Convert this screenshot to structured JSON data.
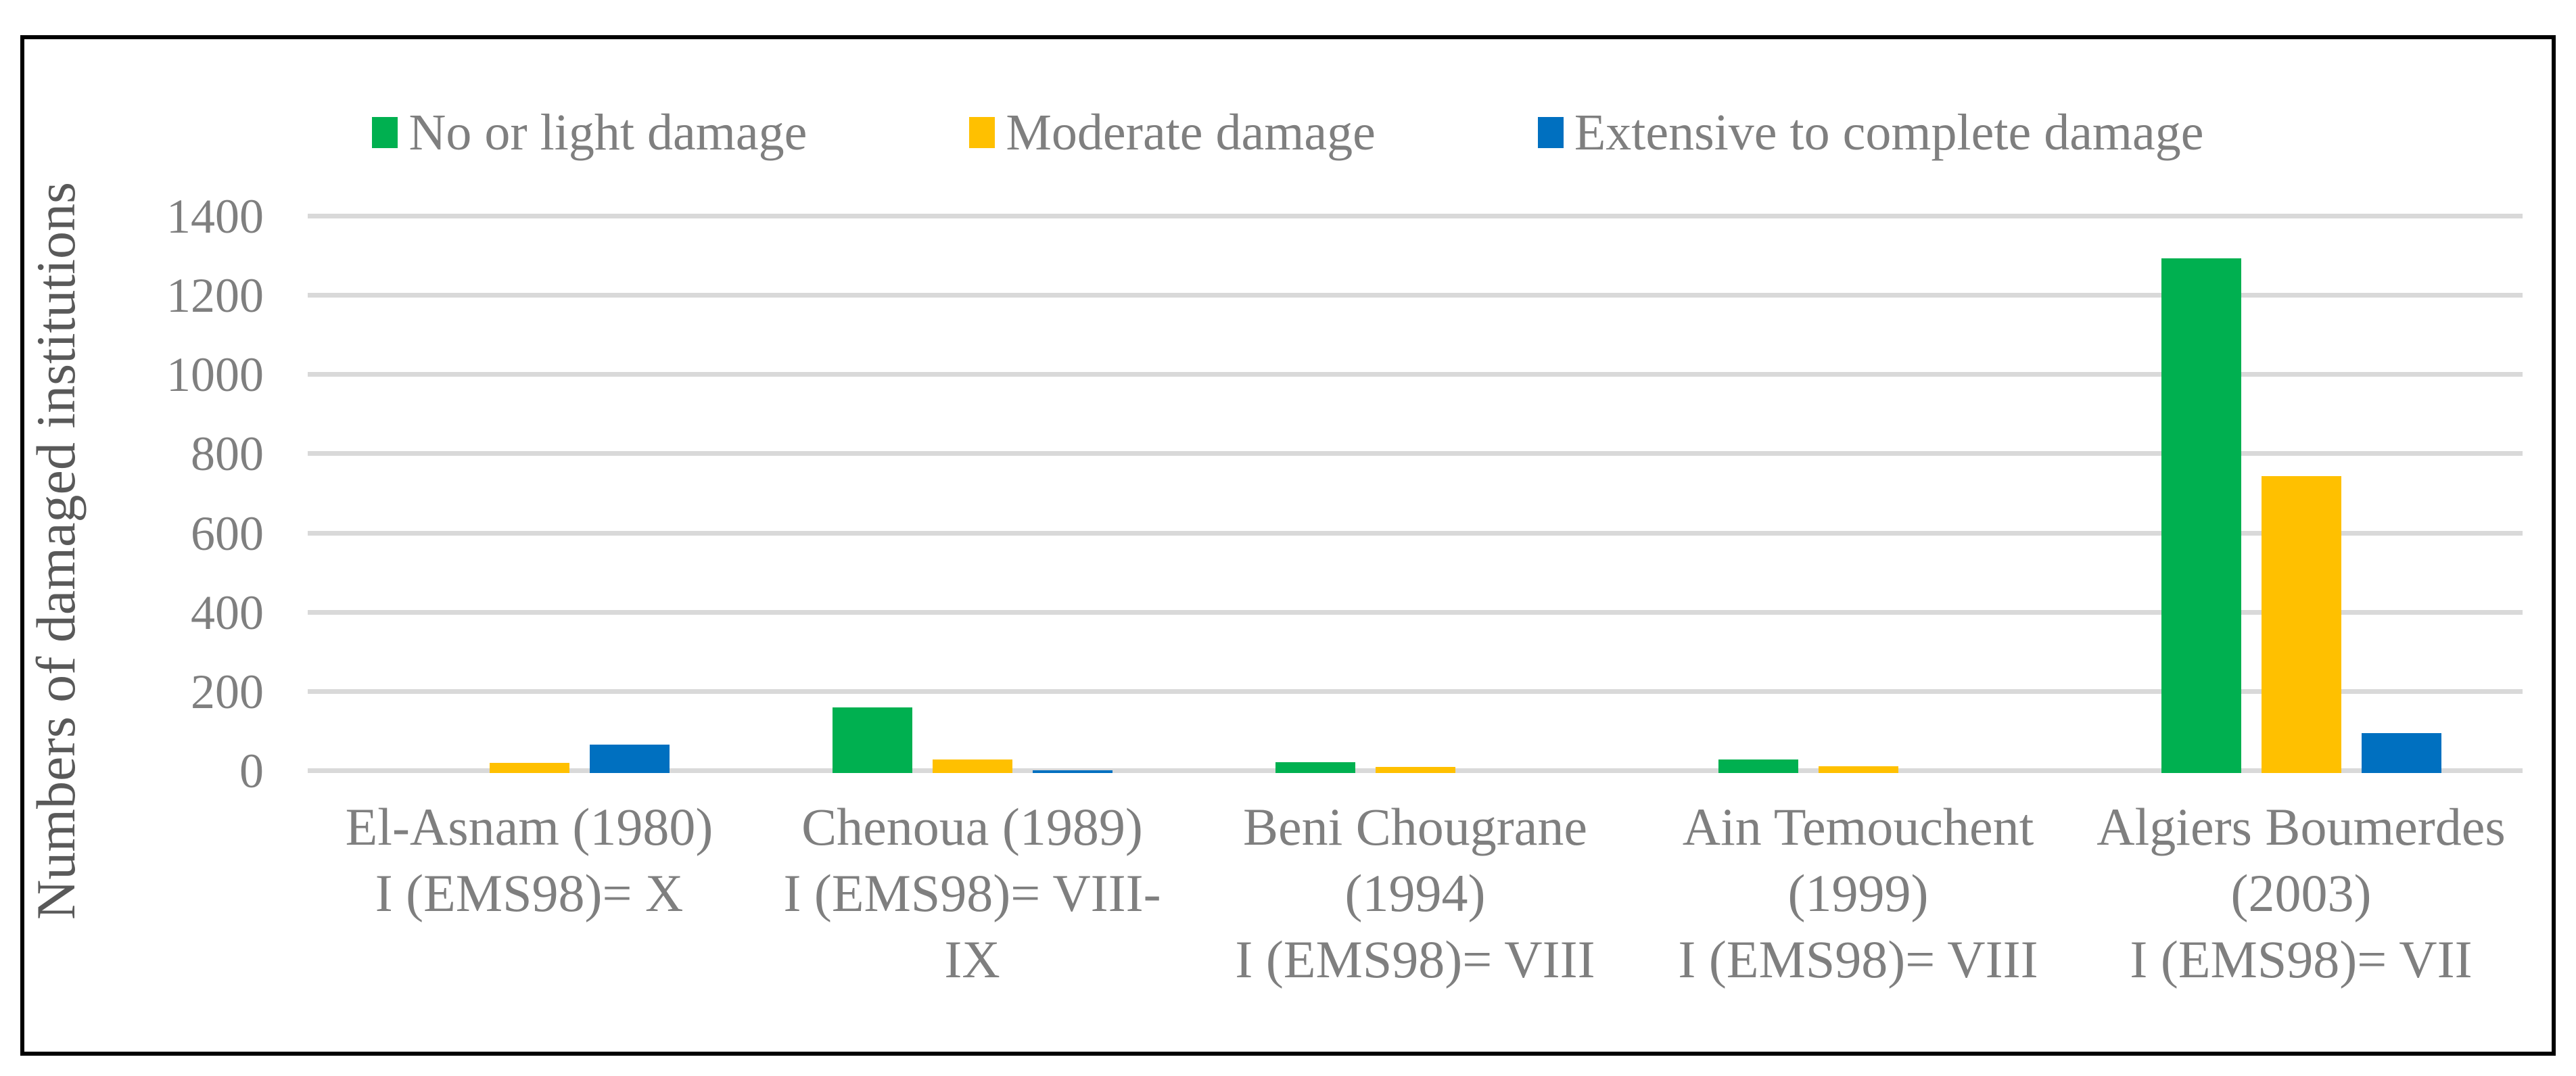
{
  "figure": {
    "background": "#ffffff",
    "border_color": "#000000",
    "gridline_color": "#D9D9D9",
    "text_color": "#7F7F7F",
    "axis_title_color": "#595959"
  },
  "legend": {
    "position": "top",
    "items": [
      {
        "label": "No or light damage",
        "color": "#00B050"
      },
      {
        "label": "Moderate damage",
        "color": "#FFC000"
      },
      {
        "label": "Extensive to complete damage",
        "color": "#0070C0"
      }
    ]
  },
  "y_axis": {
    "title": "Numbers of damaged institutions",
    "ticks": [
      "0",
      "200",
      "400",
      "600",
      "800",
      "1000",
      "1200",
      "1400"
    ],
    "min": 0,
    "max": 1400,
    "step": 200
  },
  "chart_data": {
    "type": "bar",
    "title": "",
    "xlabel": "",
    "ylabel": "Numbers of damaged institutions",
    "ylim": [
      0,
      1400
    ],
    "grid": true,
    "legend_position": "top",
    "categories": [
      "El-Asnam (1980)\nI (EMS98)= X",
      "Chenoua (1989)\nI (EMS98)= VIII-\nIX",
      "Beni Chougrane\n(1994)\nI (EMS98)= VIII",
      "Ain Temouchent\n(1999)\nI (EMS98)= VIII",
      "Algiers Boumerdes\n(2003)\nI (EMS98)= VII"
    ],
    "series": [
      {
        "name": "No or light damage",
        "color": "#00B050",
        "values": [
          0,
          165,
          28,
          34,
          1300
        ]
      },
      {
        "name": "Moderate damage",
        "color": "#FFC000",
        "values": [
          25,
          35,
          15,
          17,
          750
        ]
      },
      {
        "name": "Extensive to complete damage",
        "color": "#0070C0",
        "values": [
          72,
          7,
          0,
          0,
          100
        ]
      }
    ]
  }
}
